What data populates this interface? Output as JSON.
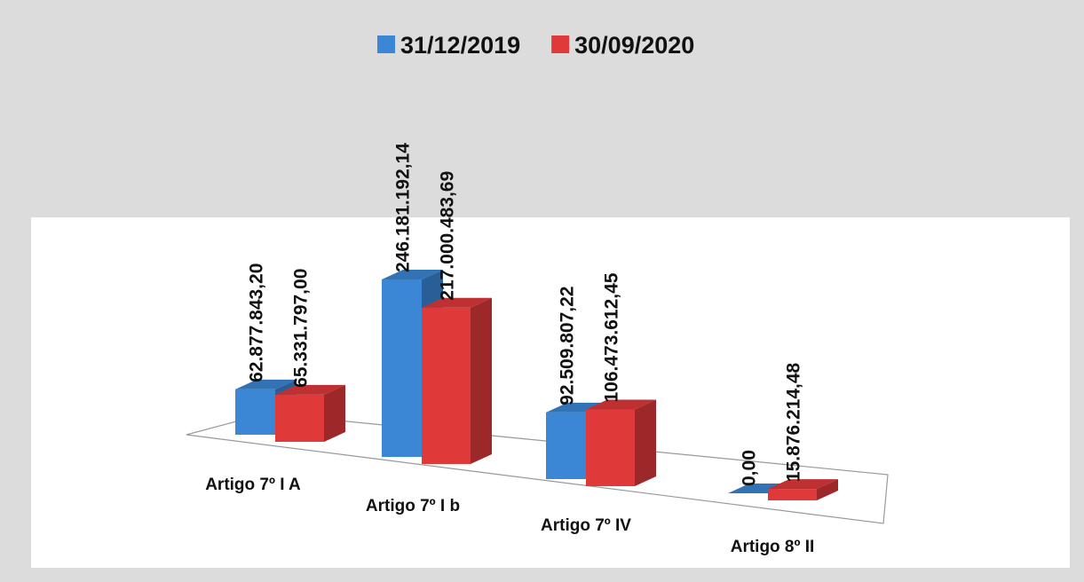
{
  "chart_data": {
    "type": "bar3d",
    "categories": [
      "Artigo 7º I A",
      "Artigo 7º I b",
      "Artigo 7º IV",
      "Artigo 8º II"
    ],
    "series": [
      {
        "name": "31/12/2019",
        "color": "#3b87d6",
        "values": [
          62877843.2,
          246181192.14,
          92509807.22,
          0
        ],
        "value_labels": [
          "62.877.843,20",
          "246.181.192,14",
          "92.509.807,22",
          "0,00"
        ]
      },
      {
        "name": "30/09/2020",
        "color": "#e0393a",
        "values": [
          65331797.0,
          217000483.69,
          106473612.45,
          15876214.48
        ],
        "value_labels": [
          "65.331.797,00",
          "217.000.483,69",
          "106.473.612,45",
          "15.876.214,48"
        ]
      }
    ],
    "legend": "top"
  }
}
